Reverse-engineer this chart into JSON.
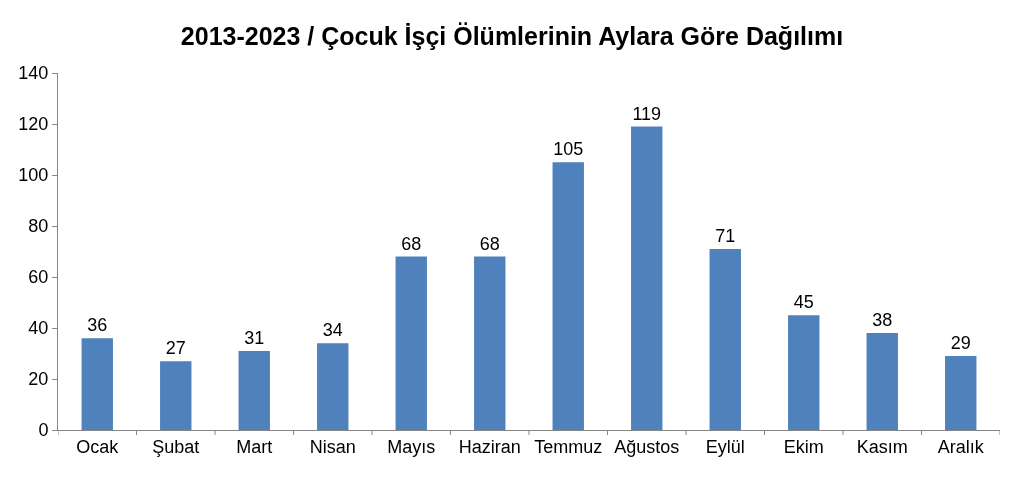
{
  "chart_data": {
    "type": "bar",
    "title": "2013-2023 / Çocuk İşçi Ölümlerinin Aylara Göre Dağılımı",
    "categories": [
      "Ocak",
      "Şubat",
      "Mart",
      "Nisan",
      "Mayıs",
      "Haziran",
      "Temmuz",
      "Ağustos",
      "Eylül",
      "Ekim",
      "Kasım",
      "Aralık"
    ],
    "values": [
      36,
      27,
      31,
      34,
      68,
      68,
      105,
      119,
      71,
      45,
      38,
      29
    ],
    "color": "#4f81bd",
    "ylim": [
      0,
      140
    ],
    "yticks": [
      0,
      20,
      40,
      60,
      80,
      100,
      120,
      140
    ],
    "grid": false,
    "data_labels": true
  }
}
